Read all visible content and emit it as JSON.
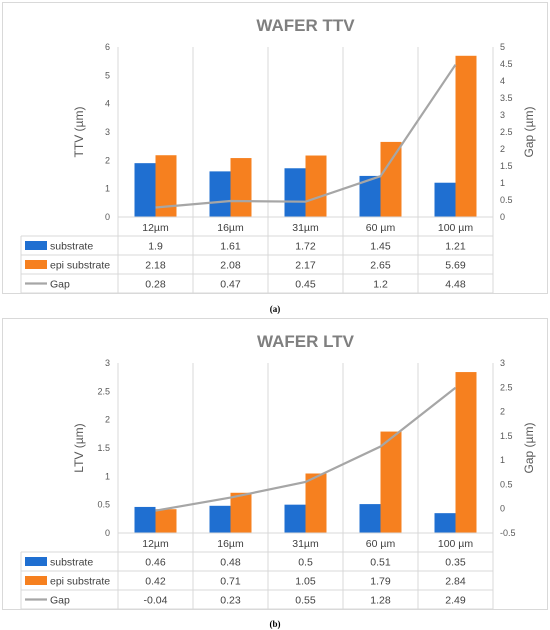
{
  "chart_data": [
    {
      "type": "bar",
      "title": "WAFER TTV",
      "ylabel": "TTV (µm)",
      "y2label": "Gap (µm)",
      "ylim": [
        0,
        6
      ],
      "yticks": [
        0,
        1,
        2,
        3,
        4,
        5,
        6
      ],
      "y2lim": [
        0,
        5
      ],
      "y2ticks": [
        0,
        0.5,
        1,
        1.5,
        2,
        2.5,
        3,
        3.5,
        4,
        4.5,
        5
      ],
      "categories": [
        "12µm",
        "16µm",
        "31µm",
        "60 µm",
        "100 µm"
      ],
      "series": [
        {
          "name": "substrate",
          "type": "bar",
          "axis": "left",
          "color": "#1f6fd1",
          "values": [
            1.9,
            1.61,
            1.72,
            1.45,
            1.21
          ]
        },
        {
          "name": "epi substrate",
          "type": "bar",
          "axis": "left",
          "color": "#f6801f",
          "values": [
            2.18,
            2.08,
            2.17,
            2.65,
            5.69
          ]
        },
        {
          "name": "Gap",
          "type": "line",
          "axis": "right",
          "color": "#a6a6a6",
          "values": [
            0.28,
            0.47,
            0.45,
            1.2,
            4.48
          ]
        }
      ],
      "data_table": true,
      "sublabel": "(a)"
    },
    {
      "type": "bar",
      "title": "WAFER LTV",
      "ylabel": "LTV (µm)",
      "y2label": "Gap (µm)",
      "ylim": [
        0,
        3
      ],
      "yticks": [
        0,
        0.5,
        1,
        1.5,
        2,
        2.5,
        3
      ],
      "y2lim": [
        -0.5,
        3
      ],
      "y2ticks": [
        -0.5,
        0,
        0.5,
        1,
        1.5,
        2,
        2.5,
        3
      ],
      "categories": [
        "12µm",
        "16µm",
        "31µm",
        "60 µm",
        "100 µm"
      ],
      "series": [
        {
          "name": "substrate",
          "type": "bar",
          "axis": "left",
          "color": "#1f6fd1",
          "values": [
            0.46,
            0.48,
            0.5,
            0.51,
            0.35
          ]
        },
        {
          "name": "epi substrate",
          "type": "bar",
          "axis": "left",
          "color": "#f6801f",
          "values": [
            0.42,
            0.71,
            1.05,
            1.79,
            2.84
          ]
        },
        {
          "name": "Gap",
          "type": "line",
          "axis": "right",
          "color": "#a6a6a6",
          "values": [
            -0.04,
            0.23,
            0.55,
            1.28,
            2.49
          ]
        }
      ],
      "data_table": true,
      "sublabel": "(b)"
    }
  ]
}
